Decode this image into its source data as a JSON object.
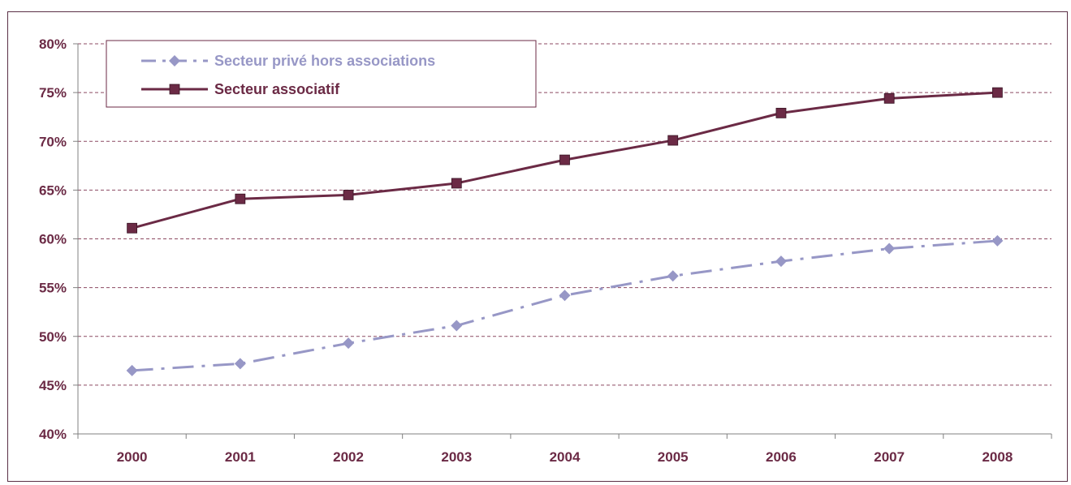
{
  "chart_data": {
    "type": "line",
    "categories": [
      "2000",
      "2001",
      "2002",
      "2003",
      "2004",
      "2005",
      "2006",
      "2007",
      "2008"
    ],
    "ylim": [
      40,
      80
    ],
    "yticks": [
      40,
      45,
      50,
      55,
      60,
      65,
      70,
      75,
      80
    ],
    "ytick_labels": [
      "40%",
      "45%",
      "50%",
      "55%",
      "60%",
      "65%",
      "70%",
      "75%",
      "80%"
    ],
    "grid": true,
    "legend_position": "top-left",
    "series": [
      {
        "name": "Secteur privé hors associations",
        "values": [
          46.5,
          47.2,
          49.3,
          51.1,
          54.2,
          56.2,
          57.7,
          59.0,
          59.8
        ],
        "color": "#9797c6",
        "marker": "diamond",
        "line_style": "dash-dot"
      },
      {
        "name": "Secteur associatif",
        "values": [
          61.1,
          64.1,
          64.5,
          65.7,
          68.1,
          70.1,
          72.9,
          74.4,
          75.0
        ],
        "color": "#6b2a45",
        "marker": "square",
        "line_style": "solid"
      }
    ],
    "colors": {
      "axis": "#808080",
      "grid": "#8c4a62",
      "frame": "#5b3046",
      "tick_text": "#6b2a45"
    }
  }
}
